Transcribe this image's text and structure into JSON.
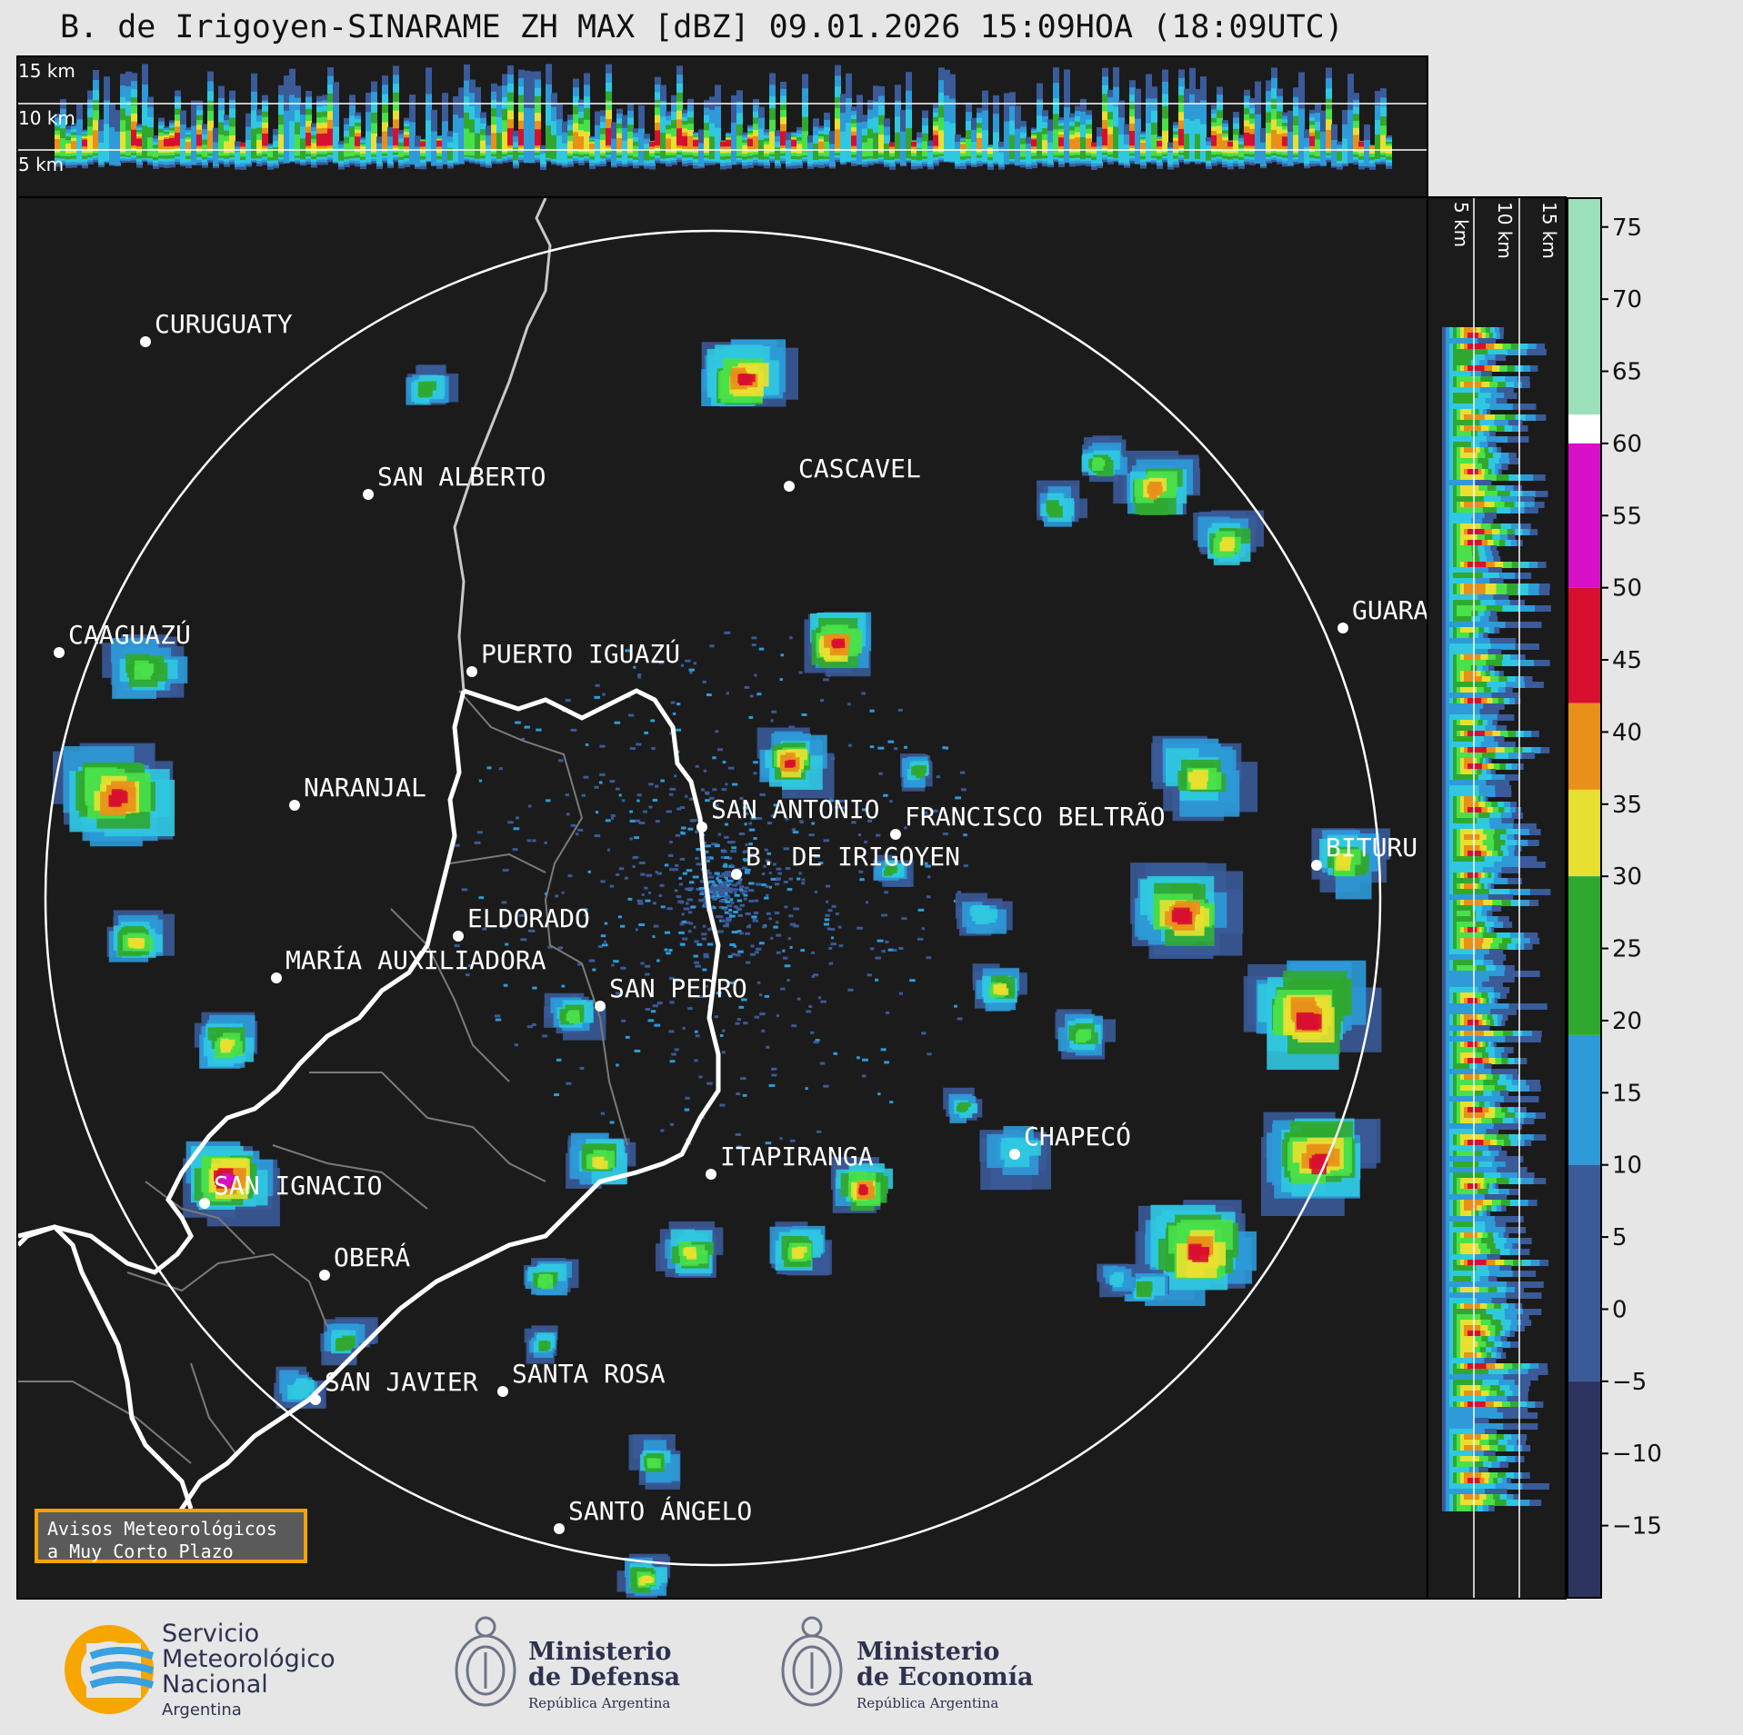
{
  "title": "B. de Irigoyen-SINARAME ZH MAX [dBZ] 09.01.2026 15:09HOA (18:09UTC)",
  "colors": {
    "background": "#e6e6e6",
    "panel": "#1b1b1b",
    "range_ring": "#ffffff",
    "border_line": "#ffffff",
    "province_line": "#808080",
    "river": "#c8c8c8",
    "avisos_border": "#f5a300"
  },
  "top_profile_labels": [
    "15 km",
    "10 km",
    "5 km"
  ],
  "side_profile_labels": [
    "5 km",
    "10 km",
    "15 km"
  ],
  "colorbar": {
    "unit": "dBZ",
    "ticks": [
      "75",
      "70",
      "65",
      "60",
      "55",
      "50",
      "45",
      "40",
      "35",
      "30",
      "25",
      "20",
      "15",
      "10",
      "5",
      "0",
      "−5",
      "−10",
      "−15"
    ],
    "range": [
      -20,
      77
    ],
    "stops": [
      {
        "from": 62,
        "to": 77,
        "color": "#9be0bb"
      },
      {
        "from": 60,
        "to": 62,
        "color": "#ffffff"
      },
      {
        "from": 50,
        "to": 60,
        "color": "#d810c8"
      },
      {
        "from": 42,
        "to": 50,
        "color": "#d81030"
      },
      {
        "from": 36,
        "to": 42,
        "color": "#e8901a"
      },
      {
        "from": 30,
        "to": 36,
        "color": "#e8e030"
      },
      {
        "from": 19,
        "to": 30,
        "color": "#30a830"
      },
      {
        "from": 10,
        "to": 19,
        "color": "#2e9ad8"
      },
      {
        "from": -5,
        "to": 10,
        "color": "#3a5a98"
      },
      {
        "from": -20,
        "to": -5,
        "color": "#2e3460"
      }
    ]
  },
  "cities": [
    {
      "name": "CURUGUATY"
    },
    {
      "name": "SAN ALBERTO"
    },
    {
      "name": "CASCAVEL"
    },
    {
      "name": "CAAGUAZÚ"
    },
    {
      "name": "GUARA"
    },
    {
      "name": "PUERTO IGUAZÚ"
    },
    {
      "name": "NARANJAL"
    },
    {
      "name": "SAN ANTONIO"
    },
    {
      "name": "FRANCISCO BELTRÃO"
    },
    {
      "name": "B. DE IRIGOYEN"
    },
    {
      "name": "BITURU"
    },
    {
      "name": "ELDORADO"
    },
    {
      "name": "MARÍA AUXILIADORA"
    },
    {
      "name": "SAN PEDRO"
    },
    {
      "name": "CHAPECÓ"
    },
    {
      "name": "ITAPIRANGA"
    },
    {
      "name": "SAN IGNACIO"
    },
    {
      "name": "OBERÁ"
    },
    {
      "name": "SAN JAVIER"
    },
    {
      "name": "SANTA ROSA"
    },
    {
      "name": "SANTO ÁNGELO"
    }
  ],
  "avisos": {
    "line1": "Avisos Meteorológicos",
    "line2": "a Muy Corto Plazo"
  },
  "logos": {
    "smn": {
      "line1": "Servicio",
      "line2": "Meteorológico",
      "line3": "Nacional",
      "line4": "Argentina"
    },
    "defensa": {
      "line1": "Ministerio",
      "line2": "de Defensa",
      "line3": "República Argentina"
    },
    "economia": {
      "line1": "Ministerio",
      "line2": "de Economía",
      "line3": "República Argentina"
    }
  }
}
